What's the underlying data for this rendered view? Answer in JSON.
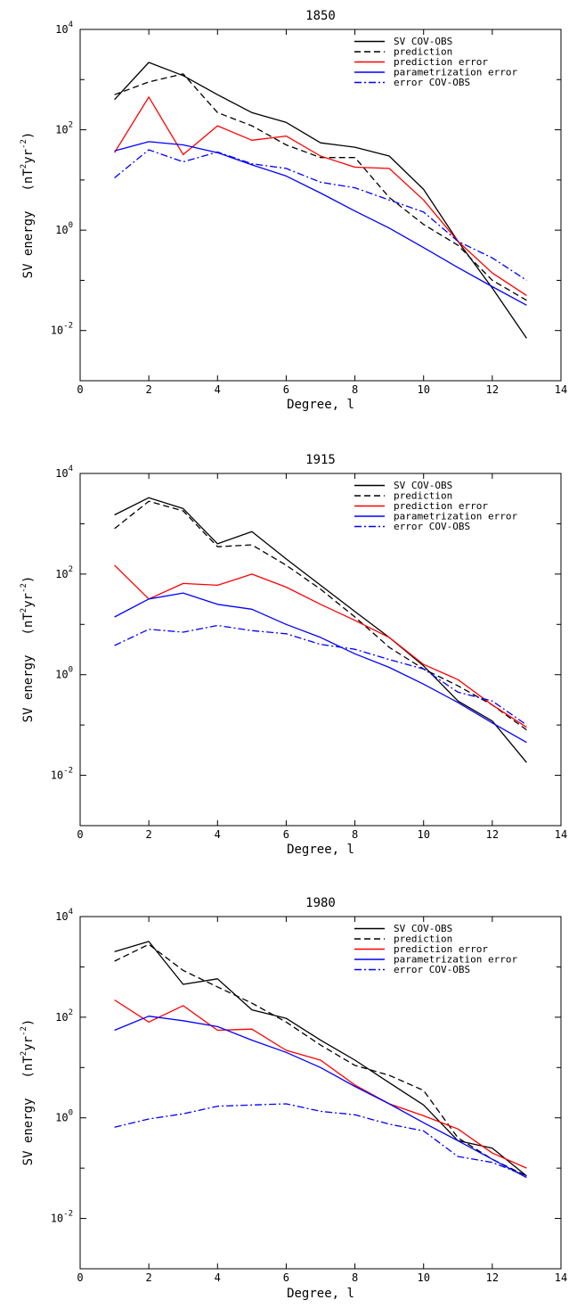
{
  "chart_data": [
    {
      "type": "line",
      "title": "1850",
      "xlabel": "Degree, l",
      "ylabel": {
        "main": "SV energy",
        "unit_pre": "(nT",
        "unit_sup1": "2",
        "unit_mid": "yr",
        "unit_sup2": "-2",
        "unit_post": ")"
      },
      "xlim": [
        0,
        14
      ],
      "ylim": [
        0.001,
        10000
      ],
      "yscale": "log",
      "xticks": [
        "0",
        "2",
        "4",
        "6",
        "8",
        "10",
        "12",
        "14"
      ],
      "yticks": [
        {
          "base": "10",
          "exp": "4"
        },
        {
          "base": "10",
          "exp": "2"
        },
        {
          "base": "10",
          "exp": "0"
        },
        {
          "base": "10",
          "exp": "-2"
        }
      ],
      "legend_position": "top-right",
      "x": [
        1,
        2,
        3,
        4,
        5,
        6,
        7,
        8,
        9,
        10,
        11,
        12,
        13
      ],
      "series": [
        {
          "name": "SV COV-OBS",
          "color": "#000000",
          "dash": "solid",
          "values": [
            400,
            2200,
            1200,
            500,
            220,
            140,
            55,
            45,
            30,
            6.5,
            0.6,
            0.07,
            0.007
          ]
        },
        {
          "name": "prediction",
          "color": "#000000",
          "dash": "dashed",
          "values": [
            500,
            900,
            1300,
            220,
            120,
            50,
            28,
            28,
            4.5,
            1.3,
            0.5,
            0.1,
            0.04
          ]
        },
        {
          "name": "prediction error",
          "color": "#ff0000",
          "dash": "solid",
          "values": [
            35,
            450,
            32,
            120,
            62,
            75,
            30,
            18,
            17,
            4,
            0.6,
            0.14,
            0.05
          ]
        },
        {
          "name": "parametrization error",
          "color": "#0000ff",
          "dash": "solid",
          "values": [
            38,
            58,
            50,
            35,
            20,
            12,
            5.5,
            2.4,
            1.1,
            0.45,
            0.18,
            0.075,
            0.032
          ]
        },
        {
          "name": "error COV-OBS",
          "color": "#0000ff",
          "dash": "dashdot",
          "values": [
            11,
            40,
            23,
            36,
            21,
            17,
            9,
            7,
            4,
            2.3,
            0.6,
            0.28,
            0.1
          ]
        }
      ]
    },
    {
      "type": "line",
      "title": "1915",
      "xlabel": "Degree, l",
      "ylabel": {
        "main": "SV energy",
        "unit_pre": "(nT",
        "unit_sup1": "2",
        "unit_mid": "yr",
        "unit_sup2": "-2",
        "unit_post": ")"
      },
      "xlim": [
        0,
        14
      ],
      "ylim": [
        0.001,
        10000
      ],
      "yscale": "log",
      "xticks": [
        "0",
        "2",
        "4",
        "6",
        "8",
        "10",
        "12",
        "14"
      ],
      "yticks": [
        {
          "base": "10",
          "exp": "4"
        },
        {
          "base": "10",
          "exp": "2"
        },
        {
          "base": "10",
          "exp": "0"
        },
        {
          "base": "10",
          "exp": "-2"
        }
      ],
      "legend_position": "top-right",
      "x": [
        1,
        2,
        3,
        4,
        5,
        6,
        7,
        8,
        9,
        10,
        11,
        12,
        13
      ],
      "series": [
        {
          "name": "SV COV-OBS",
          "color": "#000000",
          "dash": "solid",
          "values": [
            1500,
            3300,
            2000,
            400,
            700,
            200,
            60,
            18,
            5.5,
            1.5,
            0.3,
            0.12,
            0.018
          ]
        },
        {
          "name": "prediction",
          "color": "#000000",
          "dash": "dashed",
          "values": [
            800,
            2800,
            1800,
            350,
            380,
            150,
            50,
            14,
            3.5,
            1.3,
            0.6,
            0.25,
            0.08
          ]
        },
        {
          "name": "prediction error",
          "color": "#ff0000",
          "dash": "solid",
          "values": [
            150,
            32,
            65,
            60,
            100,
            55,
            25,
            12,
            5.5,
            1.6,
            0.8,
            0.25,
            0.09
          ]
        },
        {
          "name": "parametrization error",
          "color": "#0000ff",
          "dash": "solid",
          "values": [
            14,
            32,
            42,
            25,
            20,
            10,
            5.5,
            2.6,
            1.4,
            0.65,
            0.28,
            0.11,
            0.045
          ]
        },
        {
          "name": "error COV-OBS",
          "color": "#0000ff",
          "dash": "dashdot",
          "values": [
            3.8,
            8,
            7,
            9.5,
            7.5,
            6.5,
            4,
            3.2,
            2,
            1.3,
            0.45,
            0.3,
            0.1
          ]
        }
      ]
    },
    {
      "type": "line",
      "title": "1980",
      "xlabel": "Degree, l",
      "ylabel": {
        "main": "SV energy",
        "unit_pre": "(nT",
        "unit_sup1": "2",
        "unit_mid": "yr",
        "unit_sup2": "-2",
        "unit_post": ")"
      },
      "xlim": [
        0,
        14
      ],
      "ylim": [
        0.001,
        10000
      ],
      "yscale": "log",
      "xticks": [
        "0",
        "2",
        "4",
        "6",
        "8",
        "10",
        "12",
        "14"
      ],
      "yticks": [
        {
          "base": "10",
          "exp": "4"
        },
        {
          "base": "10",
          "exp": "2"
        },
        {
          "base": "10",
          "exp": "0"
        },
        {
          "base": "10",
          "exp": "-2"
        }
      ],
      "legend_position": "top-right",
      "x": [
        1,
        2,
        3,
        4,
        5,
        6,
        7,
        8,
        9,
        10,
        11,
        12,
        13
      ],
      "series": [
        {
          "name": "SV COV-OBS",
          "color": "#000000",
          "dash": "solid",
          "values": [
            2000,
            3200,
            450,
            580,
            140,
            95,
            35,
            14,
            5,
            1.8,
            0.35,
            0.25,
            0.07
          ]
        },
        {
          "name": "prediction",
          "color": "#000000",
          "dash": "dashed",
          "values": [
            1300,
            2800,
            850,
            400,
            190,
            80,
            28,
            11,
            7,
            3.5,
            0.4,
            0.15,
            0.07
          ]
        },
        {
          "name": "prediction error",
          "color": "#ff0000",
          "dash": "solid",
          "values": [
            220,
            80,
            170,
            55,
            58,
            22,
            14,
            4.5,
            1.9,
            1.1,
            0.6,
            0.2,
            0.1
          ]
        },
        {
          "name": "parametrization error",
          "color": "#0000ff",
          "dash": "solid",
          "values": [
            55,
            105,
            85,
            65,
            35,
            20,
            10,
            4.2,
            1.9,
            0.8,
            0.35,
            0.15,
            0.065
          ]
        },
        {
          "name": "error COV-OBS",
          "color": "#0000ff",
          "dash": "dashdot",
          "values": [
            0.65,
            0.95,
            1.2,
            1.7,
            1.8,
            1.9,
            1.35,
            1.15,
            0.75,
            0.55,
            0.17,
            0.13,
            0.07
          ]
        }
      ]
    }
  ]
}
